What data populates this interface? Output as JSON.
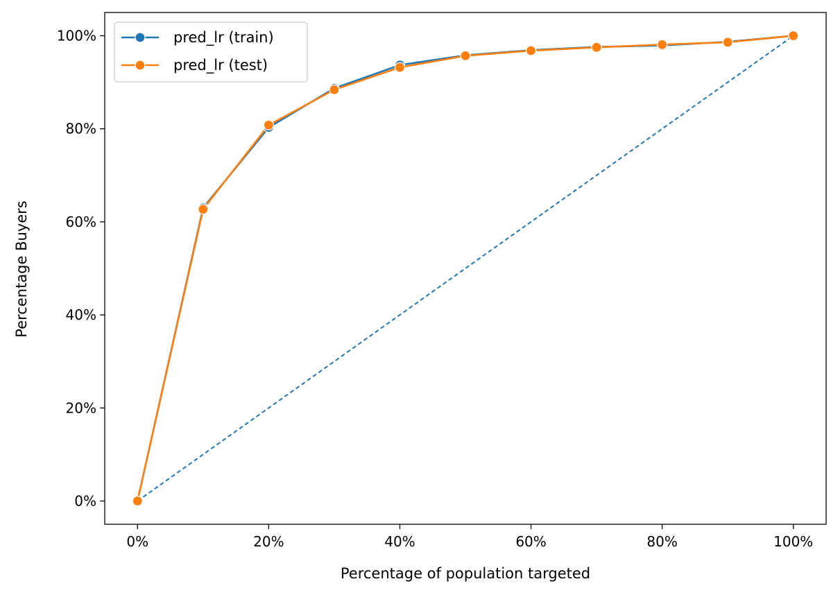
{
  "chart_data": {
    "type": "line",
    "xlabel": "Percentage of population targeted",
    "ylabel": "Percentage Buyers",
    "xlim": [
      -0.05,
      1.05
    ],
    "ylim": [
      -0.05,
      1.05
    ],
    "x_ticks": [
      0,
      0.2,
      0.4,
      0.6,
      0.8,
      1.0
    ],
    "x_tick_labels": [
      "0%",
      "20%",
      "40%",
      "60%",
      "80%",
      "100%"
    ],
    "y_ticks": [
      0,
      0.2,
      0.4,
      0.6,
      0.8,
      1.0
    ],
    "y_tick_labels": [
      "0%",
      "20%",
      "40%",
      "60%",
      "80%",
      "100%"
    ],
    "grid": false,
    "legend_position": "top-left",
    "x": [
      0,
      0.1,
      0.2,
      0.3,
      0.4,
      0.5,
      0.6,
      0.7,
      0.8,
      0.9,
      1.0
    ],
    "series": [
      {
        "name": "pred_lr (train)",
        "color": "#1f77b4",
        "marker": "circle",
        "values": [
          0,
          0.63,
          0.803,
          0.887,
          0.937,
          0.958,
          0.969,
          0.976,
          0.979,
          0.987,
          1.0
        ]
      },
      {
        "name": "pred_lr (test)",
        "color": "#ff7f0e",
        "marker": "circle",
        "values": [
          0,
          0.627,
          0.808,
          0.884,
          0.932,
          0.957,
          0.968,
          0.975,
          0.981,
          0.986,
          1.0
        ]
      }
    ],
    "reference_line": {
      "x": [
        0,
        1.0
      ],
      "values": [
        0,
        1.0
      ],
      "color": "#1f77b4",
      "style": "dashed"
    }
  }
}
